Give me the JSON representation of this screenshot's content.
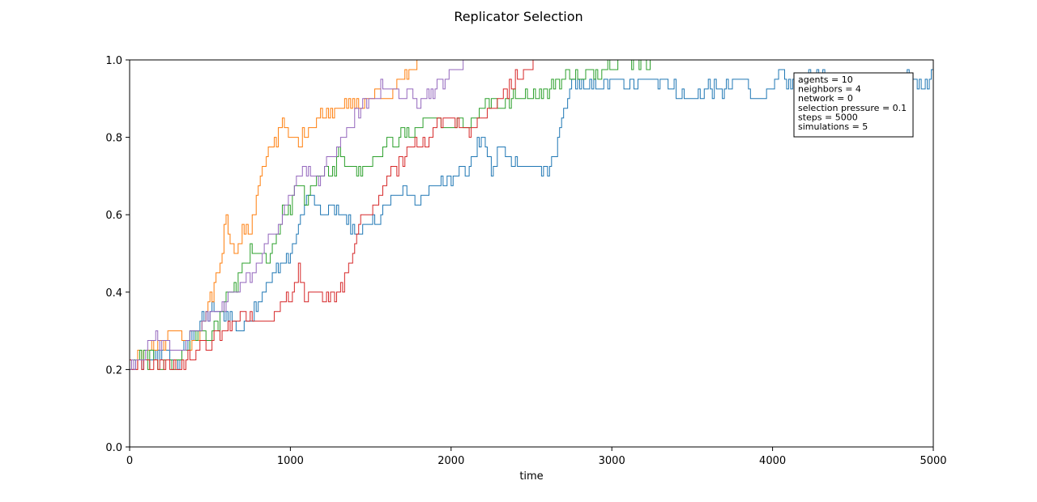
{
  "chart_data": {
    "type": "line",
    "title": "Replicator Selection",
    "xlabel": "time",
    "ylabel": "",
    "xlim": [
      0,
      5000
    ],
    "ylim": [
      0.0,
      1.0
    ],
    "xticks": [
      "0",
      "1000",
      "2000",
      "3000",
      "4000",
      "5000"
    ],
    "xtick_values": [
      0,
      1000,
      2000,
      3000,
      4000,
      5000
    ],
    "yticks": [
      "0.0",
      "0.2",
      "0.4",
      "0.6",
      "0.8",
      "1.0"
    ],
    "ytick_values": [
      0.0,
      0.2,
      0.4,
      0.6,
      0.8,
      1.0
    ],
    "grid": false,
    "legend_position": "top-right",
    "annotation_lines": [
      "agents = 10",
      "neighbors = 4",
      "network = 0",
      "selection pressure = 0.1",
      "steps = 5000",
      "simulations = 5"
    ],
    "series": [
      {
        "color": "#1f77b4",
        "x": [
          0,
          100,
          200,
          300,
          400,
          500,
          600,
          700,
          800,
          900,
          1000,
          1050,
          1100,
          1200,
          1300,
          1400,
          1500,
          1600,
          1700,
          1750,
          1800,
          1900,
          2000,
          2100,
          2150,
          2200,
          2250,
          2300,
          2400,
          2500,
          2600,
          2650,
          2700,
          2750,
          2800,
          2900,
          3000,
          3100,
          3200,
          3300,
          3400,
          3500,
          3600,
          3700,
          3800,
          3900,
          4000,
          4050,
          4100,
          4200,
          4300,
          4400,
          4500,
          4600,
          4700,
          4800,
          4850,
          4900,
          5000
        ],
        "values": [
          0.2,
          0.22,
          0.25,
          0.22,
          0.3,
          0.35,
          0.35,
          0.3,
          0.38,
          0.45,
          0.5,
          0.57,
          0.65,
          0.6,
          0.62,
          0.55,
          0.57,
          0.62,
          0.67,
          0.65,
          0.63,
          0.68,
          0.7,
          0.72,
          0.77,
          0.8,
          0.7,
          0.78,
          0.73,
          0.73,
          0.7,
          0.77,
          0.87,
          0.95,
          0.92,
          0.93,
          0.95,
          0.93,
          0.95,
          0.95,
          0.92,
          0.9,
          0.93,
          0.92,
          0.95,
          0.9,
          0.92,
          0.97,
          0.93,
          0.95,
          0.95,
          0.93,
          0.95,
          0.93,
          0.92,
          0.95,
          0.97,
          0.94,
          0.95
        ]
      },
      {
        "color": "#ff7f0e",
        "x": [
          0,
          100,
          200,
          300,
          400,
          500,
          550,
          600,
          650,
          700,
          750,
          800,
          850,
          900,
          950,
          1000,
          1050,
          1100,
          1150,
          1200,
          1300,
          1400,
          1500,
          1550,
          1600,
          1650,
          1700,
          1750,
          1800
        ],
        "values": [
          0.2,
          0.25,
          0.27,
          0.3,
          0.25,
          0.38,
          0.45,
          0.6,
          0.5,
          0.55,
          0.57,
          0.67,
          0.75,
          0.78,
          0.84,
          0.8,
          0.78,
          0.82,
          0.84,
          0.86,
          0.88,
          0.88,
          0.9,
          0.93,
          0.9,
          0.92,
          0.95,
          0.97,
          1.0
        ]
      },
      {
        "color": "#2ca02c",
        "x": [
          0,
          100,
          200,
          300,
          400,
          500,
          550,
          600,
          700,
          750,
          800,
          850,
          900,
          950,
          1000,
          1050,
          1100,
          1150,
          1200,
          1250,
          1300,
          1350,
          1400,
          1450,
          1500,
          1550,
          1600,
          1650,
          1700,
          1750,
          1800,
          1900,
          2000,
          2050,
          2100,
          2150,
          2200,
          2250,
          2300,
          2400,
          2500,
          2600,
          2700,
          2800,
          2900,
          3000,
          3100,
          3250
        ],
        "values": [
          0.22,
          0.23,
          0.22,
          0.22,
          0.3,
          0.28,
          0.32,
          0.38,
          0.45,
          0.5,
          0.5,
          0.48,
          0.52,
          0.6,
          0.62,
          0.68,
          0.63,
          0.7,
          0.72,
          0.7,
          0.75,
          0.73,
          0.72,
          0.7,
          0.73,
          0.76,
          0.8,
          0.78,
          0.82,
          0.8,
          0.82,
          0.85,
          0.83,
          0.85,
          0.83,
          0.86,
          0.88,
          0.9,
          0.88,
          0.9,
          0.91,
          0.92,
          0.96,
          0.95,
          0.97,
          0.99,
          1.0,
          1.0
        ]
      },
      {
        "color": "#d62728",
        "x": [
          0,
          100,
          200,
          300,
          400,
          500,
          600,
          700,
          800,
          900,
          1000,
          1050,
          1100,
          1150,
          1200,
          1250,
          1300,
          1350,
          1400,
          1450,
          1500,
          1550,
          1600,
          1650,
          1700,
          1750,
          1800,
          1850,
          1900,
          1950,
          2000,
          2100,
          2200,
          2300,
          2400,
          2500,
          2520
        ],
        "values": [
          0.2,
          0.22,
          0.22,
          0.2,
          0.25,
          0.27,
          0.3,
          0.35,
          0.32,
          0.35,
          0.4,
          0.45,
          0.38,
          0.4,
          0.37,
          0.38,
          0.4,
          0.45,
          0.52,
          0.6,
          0.6,
          0.65,
          0.7,
          0.72,
          0.75,
          0.78,
          0.8,
          0.78,
          0.83,
          0.85,
          0.84,
          0.82,
          0.85,
          0.9,
          0.95,
          0.98,
          1.0
        ]
      },
      {
        "color": "#9467bd",
        "x": [
          0,
          100,
          150,
          200,
          300,
          400,
          500,
          600,
          700,
          800,
          850,
          900,
          950,
          1000,
          1050,
          1100,
          1150,
          1200,
          1250,
          1300,
          1350,
          1400,
          1450,
          1500,
          1550,
          1600,
          1650,
          1700,
          1750,
          1800,
          1850,
          1900,
          1950,
          2000,
          2050,
          2100
        ],
        "values": [
          0.2,
          0.25,
          0.28,
          0.27,
          0.24,
          0.3,
          0.34,
          0.38,
          0.42,
          0.48,
          0.52,
          0.55,
          0.6,
          0.66,
          0.7,
          0.72,
          0.68,
          0.72,
          0.75,
          0.78,
          0.82,
          0.85,
          0.88,
          0.9,
          0.92,
          0.93,
          0.92,
          0.9,
          0.91,
          0.9,
          0.92,
          0.92,
          0.95,
          0.97,
          0.98,
          1.0
        ]
      }
    ]
  }
}
